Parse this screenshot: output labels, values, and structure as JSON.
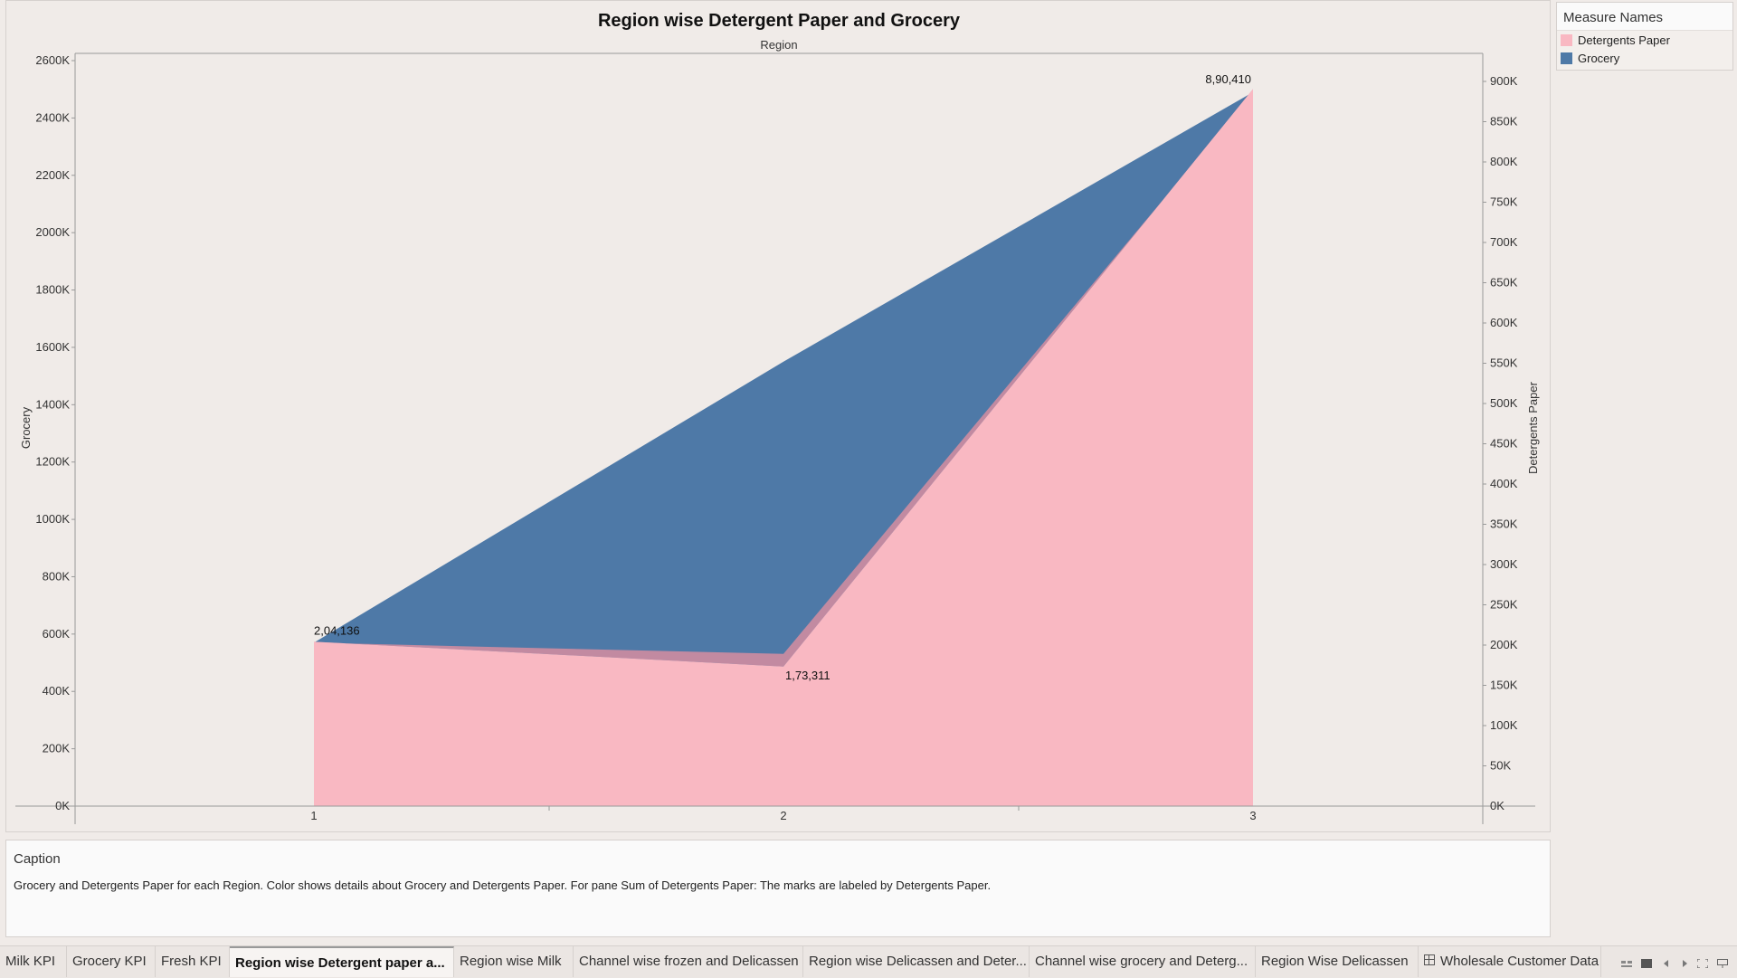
{
  "colors": {
    "detergents": "#f9b8c2",
    "grocery": "#4e79a7",
    "overlap": "#c28aa1",
    "axis": "#999999"
  },
  "chart_data": {
    "type": "area",
    "title": "Region wise Detergent Paper and Grocery",
    "top_header": "Region",
    "categories": [
      "1",
      "2",
      "3"
    ],
    "y_left": {
      "label": "Grocery",
      "range": [
        0,
        2600000
      ],
      "ticks": [
        "0K",
        "200K",
        "400K",
        "600K",
        "800K",
        "1000K",
        "1200K",
        "1400K",
        "1600K",
        "1800K",
        "2000K",
        "2200K",
        "2400K",
        "2600K"
      ]
    },
    "y_right": {
      "label": "Detergents Paper",
      "range": [
        0,
        900000
      ],
      "ticks": [
        "0K",
        "50K",
        "100K",
        "150K",
        "200K",
        "250K",
        "300K",
        "350K",
        "400K",
        "450K",
        "500K",
        "550K",
        "600K",
        "650K",
        "700K",
        "750K",
        "800K",
        "850K",
        "900K"
      ]
    },
    "series": [
      {
        "name": "Grocery",
        "axis": "left",
        "values": [
          570000,
          1550000,
          2490000
        ]
      },
      {
        "name": "Detergents Paper",
        "axis": "right",
        "values": [
          204136,
          173311,
          890410
        ]
      }
    ],
    "data_labels": [
      "2,04,136",
      "1,73,311",
      "8,90,410"
    ],
    "grid": false,
    "legend_position": "right"
  },
  "legend": {
    "title": "Measure Names",
    "items": [
      {
        "label": "Detergents Paper",
        "color": "#f9b8c2"
      },
      {
        "label": "Grocery",
        "color": "#4e79a7"
      }
    ]
  },
  "caption": {
    "title": "Caption",
    "text": "Grocery and Detergents Paper for each Region.  Color shows details about Grocery and Detergents Paper.  For pane Sum of Detergents Paper:  The marks are labeled by Detergents Paper."
  },
  "tabs": [
    {
      "label": "Milk KPI",
      "active": false
    },
    {
      "label": "Grocery KPI",
      "active": false
    },
    {
      "label": "Fresh KPI",
      "active": false
    },
    {
      "label": "Region wise Detergent paper a...",
      "active": true
    },
    {
      "label": "Region wise Milk",
      "active": false
    },
    {
      "label": "Channel wise frozen and Delicassen",
      "active": false
    },
    {
      "label": "Region wise Delicassen and Deter...",
      "active": false
    },
    {
      "label": "Channel wise grocery and Deterg...",
      "active": false
    },
    {
      "label": "Region Wise Delicassen",
      "active": false
    },
    {
      "label": "Wholesale Customer Data",
      "active": false
    }
  ]
}
